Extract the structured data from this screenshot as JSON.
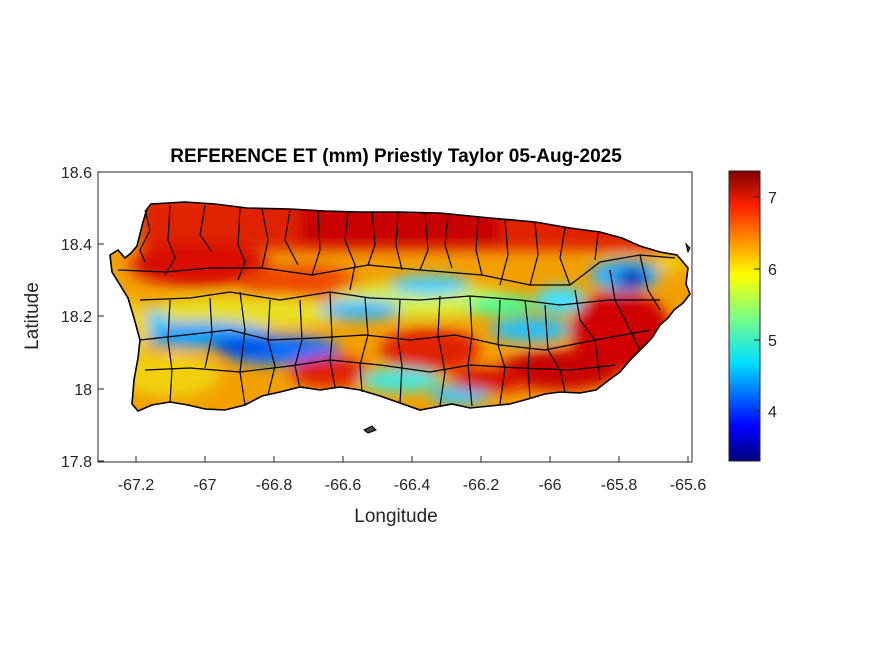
{
  "title": "REFERENCE ET (mm) Priestly Taylor 05-Aug-2025",
  "xlabel": "Longitude",
  "ylabel": "Latitude",
  "x_ticks": [
    "-67.2",
    "-67",
    "-66.8",
    "-66.6",
    "-66.4",
    "-66.2",
    "-66",
    "-65.8",
    "-65.6"
  ],
  "y_ticks": [
    "18.6",
    "18.4",
    "18.2",
    "18"
  ],
  "y_bottom_tick": "17.8",
  "colorbar": {
    "colormap": "jet",
    "ticks": [
      "7",
      "6",
      "5",
      "4"
    ],
    "range": [
      3.3,
      7.4
    ]
  },
  "map": {
    "region": "Puerto Rico",
    "xlim": [
      -67.3,
      -65.58
    ],
    "ylim": [
      17.8,
      18.6
    ],
    "boundary_color": "#000000"
  }
}
